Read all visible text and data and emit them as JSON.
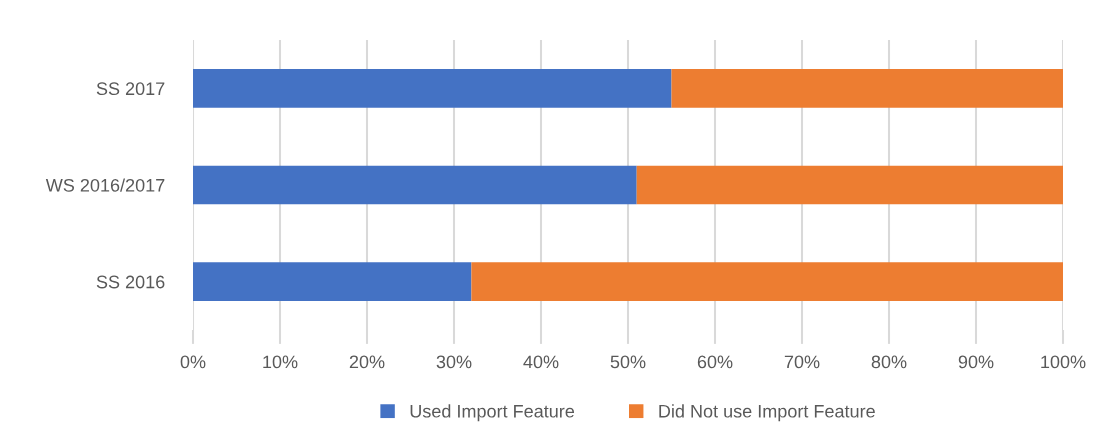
{
  "chart_data": {
    "type": "bar",
    "orientation": "horizontal",
    "stacked": true,
    "categories": [
      "SS 2017",
      "WS 2016/2017",
      "SS 2016"
    ],
    "series": [
      {
        "name": "Used Import Feature",
        "color": "#4472c4",
        "values": [
          55,
          51,
          32
        ]
      },
      {
        "name": "Did Not use Import Feature",
        "color": "#ed7d31",
        "values": [
          45,
          49,
          68
        ]
      }
    ],
    "xlim": [
      0,
      100
    ],
    "xticks": [
      {
        "value": 0,
        "label": "0%"
      },
      {
        "value": 10,
        "label": "10%"
      },
      {
        "value": 20,
        "label": "20%"
      },
      {
        "value": 30,
        "label": "30%"
      },
      {
        "value": 40,
        "label": "40%"
      },
      {
        "value": 50,
        "label": "50%"
      },
      {
        "value": 60,
        "label": "60%"
      },
      {
        "value": 70,
        "label": "70%"
      },
      {
        "value": 80,
        "label": "80%"
      },
      {
        "value": 90,
        "label": "90%"
      },
      {
        "value": 100,
        "label": "100%"
      }
    ],
    "grid": "x",
    "legend": "bottom"
  }
}
